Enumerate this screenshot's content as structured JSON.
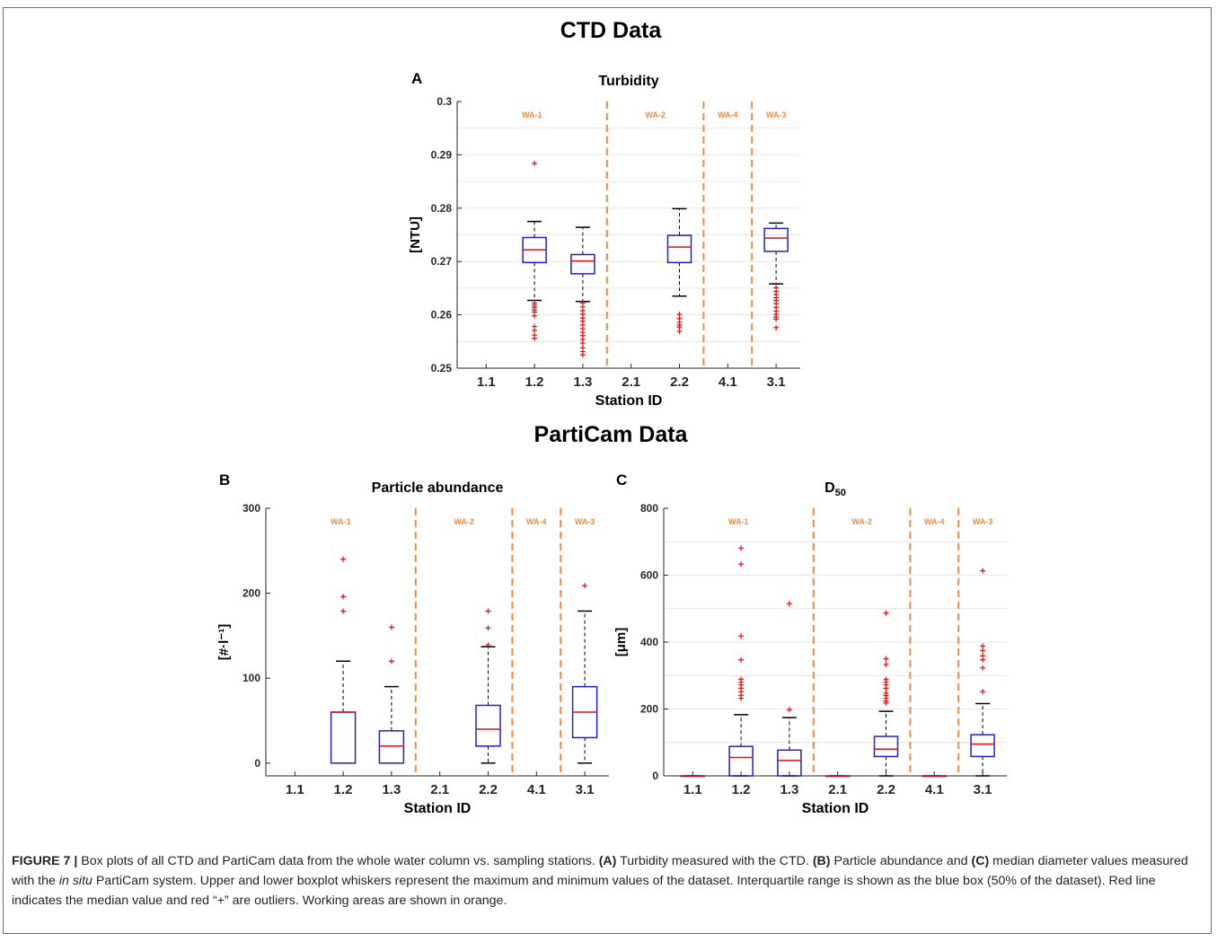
{
  "figure": {
    "ctd_heading": "CTD Data",
    "particam_heading": "PartiCam Data"
  },
  "colors": {
    "box": "#1f1fd6",
    "median": "#e01010",
    "outlier": "#e01010",
    "working_area": "#f08a3c"
  },
  "chart_data": [
    {
      "panel": "A",
      "type": "boxplot",
      "title": "Turbidity",
      "xlabel": "Station ID",
      "ylabel": "[NTU]",
      "ylim": [
        0.25,
        0.3
      ],
      "yticks": [
        "0.25",
        "0.26",
        "0.27",
        "0.28",
        "0.29",
        "0.3"
      ],
      "grid": true,
      "categories": [
        "1.1",
        "1.2",
        "1.3",
        "2.1",
        "2.2",
        "4.1",
        "3.1"
      ],
      "working_areas": [
        {
          "label": "WA-1",
          "from": 0,
          "to": 2
        },
        {
          "label": "WA-2",
          "from": 3,
          "to": 4
        },
        {
          "label": "WA-4",
          "from": 5,
          "to": 5
        },
        {
          "label": "WA-3",
          "from": 6,
          "to": 6
        }
      ],
      "boxes": [
        {
          "category": "1.1",
          "empty": true
        },
        {
          "category": "1.2",
          "min": 0.2627,
          "q1": 0.2698,
          "median": 0.2722,
          "q3": 0.2745,
          "max": 0.2775,
          "outliers": [
            0.2884,
            0.2622,
            0.2618,
            0.2614,
            0.2609,
            0.2605,
            0.2598,
            0.2578,
            0.2571,
            0.2562,
            0.2556
          ]
        },
        {
          "category": "1.3",
          "min": 0.2625,
          "q1": 0.2677,
          "median": 0.2701,
          "q3": 0.2713,
          "max": 0.2764,
          "outliers": [
            0.2622,
            0.2615,
            0.2608,
            0.2601,
            0.2594,
            0.2588,
            0.2581,
            0.2574,
            0.2567,
            0.2561,
            0.2554,
            0.2547,
            0.2538,
            0.2531,
            0.2525
          ]
        },
        {
          "category": "2.1",
          "empty": true
        },
        {
          "category": "2.2",
          "min": 0.2635,
          "q1": 0.2698,
          "median": 0.2727,
          "q3": 0.2749,
          "max": 0.2799,
          "outliers": [
            0.2601,
            0.2593,
            0.2586,
            0.2581,
            0.2577,
            0.2569
          ]
        },
        {
          "category": "4.1",
          "empty": true
        },
        {
          "category": "3.1",
          "min": 0.2658,
          "q1": 0.2719,
          "median": 0.2744,
          "q3": 0.2762,
          "max": 0.2772,
          "outliers": [
            0.2651,
            0.2644,
            0.2638,
            0.2632,
            0.2627,
            0.2621,
            0.2614,
            0.2607,
            0.2601,
            0.2596,
            0.2592,
            0.2576
          ]
        }
      ]
    },
    {
      "panel": "B",
      "type": "boxplot",
      "title": "Particle abundance",
      "xlabel": "Station ID",
      "ylabel": "[#·l⁻¹]",
      "ylim": [
        -15,
        300
      ],
      "yticks": [
        "0",
        "100",
        "200",
        "300"
      ],
      "grid": false,
      "categories": [
        "1.1",
        "1.2",
        "1.3",
        "2.1",
        "2.2",
        "4.1",
        "3.1"
      ],
      "working_areas": [
        {
          "label": "WA-1",
          "from": 0,
          "to": 2
        },
        {
          "label": "WA-2",
          "from": 3,
          "to": 4
        },
        {
          "label": "WA-4",
          "from": 5,
          "to": 5
        },
        {
          "label": "WA-3",
          "from": 6,
          "to": 6
        }
      ],
      "boxes": [
        {
          "category": "1.1",
          "empty": true
        },
        {
          "category": "1.2",
          "min": 0,
          "q1": 0,
          "median": 60,
          "q3": 60,
          "max": 120,
          "outliers": [
            240,
            196,
            179
          ]
        },
        {
          "category": "1.3",
          "min": 0,
          "q1": 0,
          "median": 20,
          "q3": 38,
          "max": 90,
          "outliers": [
            160,
            120
          ]
        },
        {
          "category": "2.1",
          "empty": true
        },
        {
          "category": "2.2",
          "min": 0,
          "q1": 20,
          "median": 40,
          "q3": 68,
          "max": 137,
          "outliers": [
            179,
            159,
            139
          ]
        },
        {
          "category": "4.1",
          "empty": true
        },
        {
          "category": "3.1",
          "min": 0,
          "q1": 30,
          "median": 60,
          "q3": 90,
          "max": 179,
          "outliers": [
            209
          ]
        }
      ]
    },
    {
      "panel": "C",
      "type": "boxplot",
      "title": "D",
      "title_subscript": "50",
      "xlabel": "Station ID",
      "ylabel": "[μm]",
      "ylim": [
        0,
        800
      ],
      "yticks": [
        "0",
        "200",
        "400",
        "600",
        "800"
      ],
      "grid": true,
      "categories": [
        "1.1",
        "1.2",
        "1.3",
        "2.1",
        "2.2",
        "4.1",
        "3.1"
      ],
      "working_areas": [
        {
          "label": "WA-1",
          "from": 0,
          "to": 2
        },
        {
          "label": "WA-2",
          "from": 3,
          "to": 4
        },
        {
          "label": "WA-4",
          "from": 5,
          "to": 5
        },
        {
          "label": "WA-3",
          "from": 6,
          "to": 6
        }
      ],
      "boxes": [
        {
          "category": "1.1",
          "min": 0,
          "q1": 0,
          "median": 0,
          "q3": 0,
          "max": 0,
          "outliers": []
        },
        {
          "category": "1.2",
          "min": 0,
          "q1": 0,
          "median": 55,
          "q3": 88,
          "max": 183,
          "outliers": [
            681,
            633,
            418,
            347,
            289,
            280,
            272,
            262,
            252,
            241,
            232
          ]
        },
        {
          "category": "1.3",
          "min": 0,
          "q1": 0,
          "median": 46,
          "q3": 77,
          "max": 174,
          "outliers": [
            515,
            198
          ]
        },
        {
          "category": "2.1",
          "min": 0,
          "q1": 0,
          "median": 0,
          "q3": 0,
          "max": 0,
          "outliers": []
        },
        {
          "category": "2.2",
          "min": 0,
          "q1": 58,
          "median": 80,
          "q3": 118,
          "max": 193,
          "outliers": [
            487,
            350,
            333,
            288,
            280,
            272,
            262,
            247,
            240,
            232,
            224,
            218
          ]
        },
        {
          "category": "4.1",
          "min": 0,
          "q1": 0,
          "median": 0,
          "q3": 0,
          "max": 0,
          "outliers": []
        },
        {
          "category": "3.1",
          "min": 0,
          "q1": 58,
          "median": 95,
          "q3": 123,
          "max": 216,
          "outliers": [
            613,
            388,
            375,
            359,
            347,
            323,
            252
          ]
        }
      ]
    }
  ],
  "caption": {
    "lead": "FIGURE 7 |",
    "t1": " Box plots of all CTD and PartiCam data from the whole water column vs. sampling stations. ",
    "a": "(A)",
    "t2": " Turbidity measured with the CTD. ",
    "b": "(B)",
    "t3": " Particle abundance and ",
    "c": "(C)",
    "t4": " median diameter values measured with the ",
    "insitu": "in situ",
    "t5": " PartiCam system. Upper and lower boxplot whiskers represent the maximum and minimum values of the dataset. Interquartile range is shown as the blue box (50% of the dataset). Red line indicates the median value and red “+” are outliers. Working areas are shown in orange."
  }
}
